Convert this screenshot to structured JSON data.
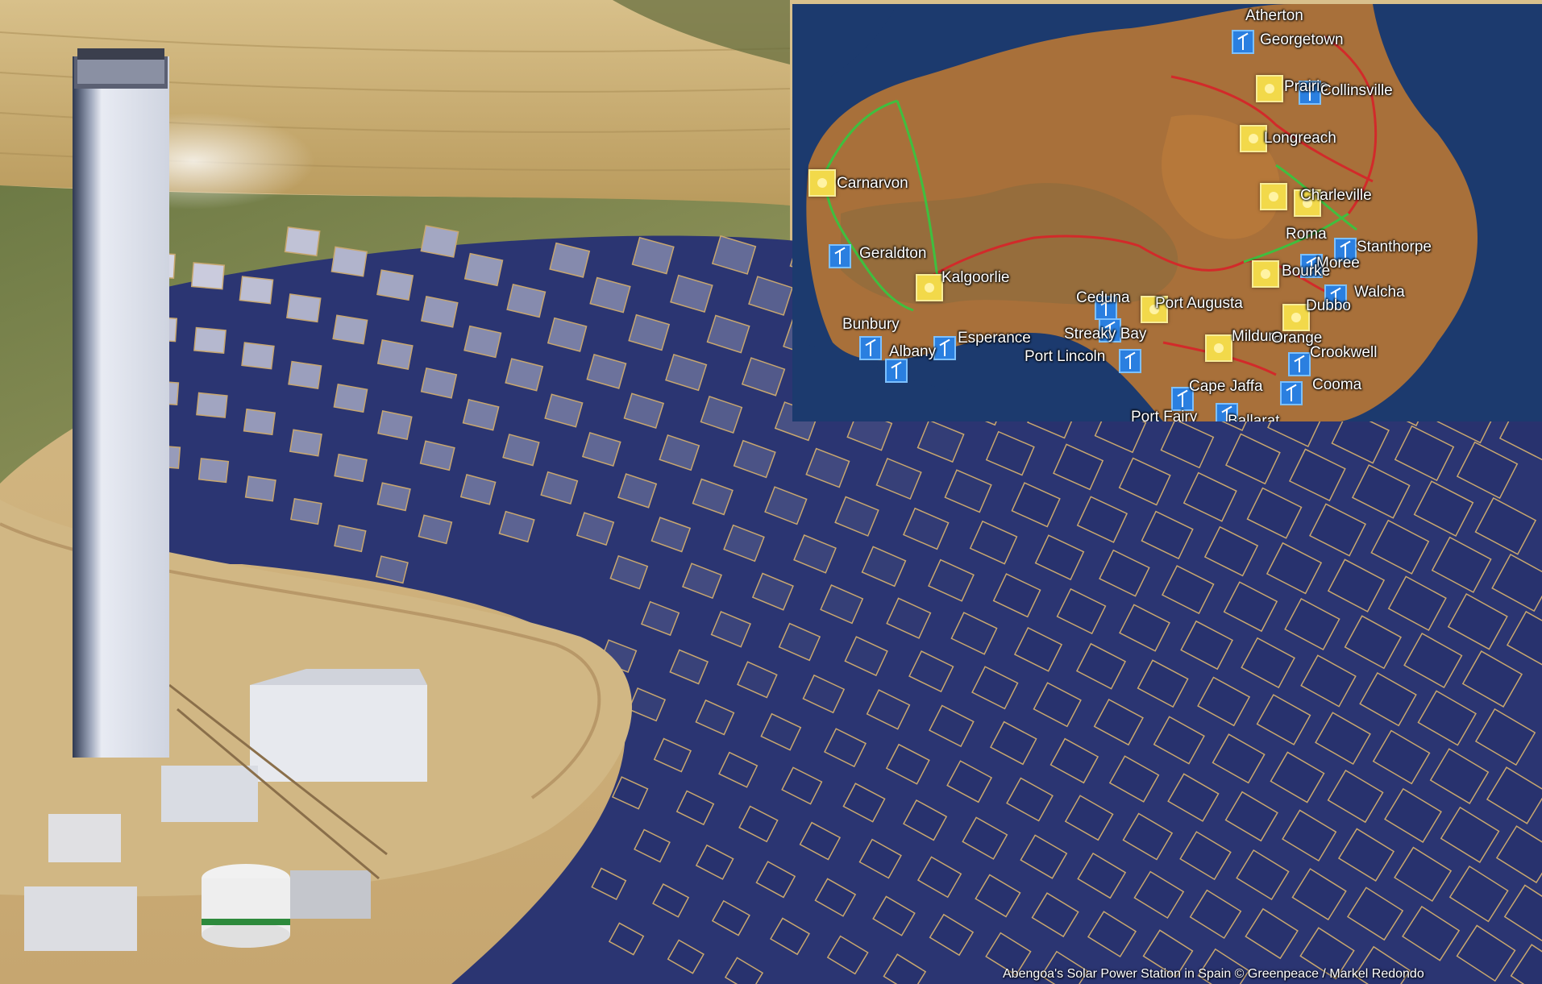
{
  "photo": {
    "credit": "Abengoa's Solar Power Station in Spain © Greenpeace / Markel Redondo"
  },
  "map": {
    "cities": [
      {
        "name": "Atherton",
        "type": "none"
      },
      {
        "name": "Georgetown",
        "type": "wind"
      },
      {
        "name": "Prairie",
        "type": "solar"
      },
      {
        "name": "Collinsville",
        "type": "wind"
      },
      {
        "name": "Longreach",
        "type": "solar"
      },
      {
        "name": "Carnarvon",
        "type": "solar"
      },
      {
        "name": "Charleville",
        "type": "solar"
      },
      {
        "name": "Roma",
        "type": "solar"
      },
      {
        "name": "Stanthorpe",
        "type": "wind"
      },
      {
        "name": "Moree",
        "type": "wind"
      },
      {
        "name": "Geraldton",
        "type": "wind"
      },
      {
        "name": "Kalgoorlie",
        "type": "solar"
      },
      {
        "name": "Bourke",
        "type": "solar"
      },
      {
        "name": "Walcha",
        "type": "wind"
      },
      {
        "name": "Ceduna",
        "type": "wind"
      },
      {
        "name": "Port Augusta",
        "type": "solar"
      },
      {
        "name": "Dubbo",
        "type": "solar"
      },
      {
        "name": "Bunbury",
        "type": "wind"
      },
      {
        "name": "Esperance",
        "type": "wind"
      },
      {
        "name": "Streaky Bay",
        "type": "wind"
      },
      {
        "name": "Mildura",
        "type": "solar"
      },
      {
        "name": "Orange",
        "type": "none"
      },
      {
        "name": "Albany",
        "type": "wind"
      },
      {
        "name": "Port Lincoln",
        "type": "wind"
      },
      {
        "name": "Crookwell",
        "type": "wind"
      },
      {
        "name": "Cape Jaffa",
        "type": "wind"
      },
      {
        "name": "Cooma",
        "type": "wind"
      },
      {
        "name": "Port Fairy",
        "type": "wind"
      },
      {
        "name": "Ballarat",
        "type": "wind"
      }
    ]
  },
  "colors": {
    "ocean": "#1c3a6e",
    "land": "#a8703a",
    "grid_line_red": "#d22a2a",
    "grid_line_green": "#3fbf3f",
    "solar_marker": "#f2d94a",
    "wind_marker": "#2a7fe0",
    "sky_hills": "#c9ae72",
    "mirrors": "#27346e"
  }
}
